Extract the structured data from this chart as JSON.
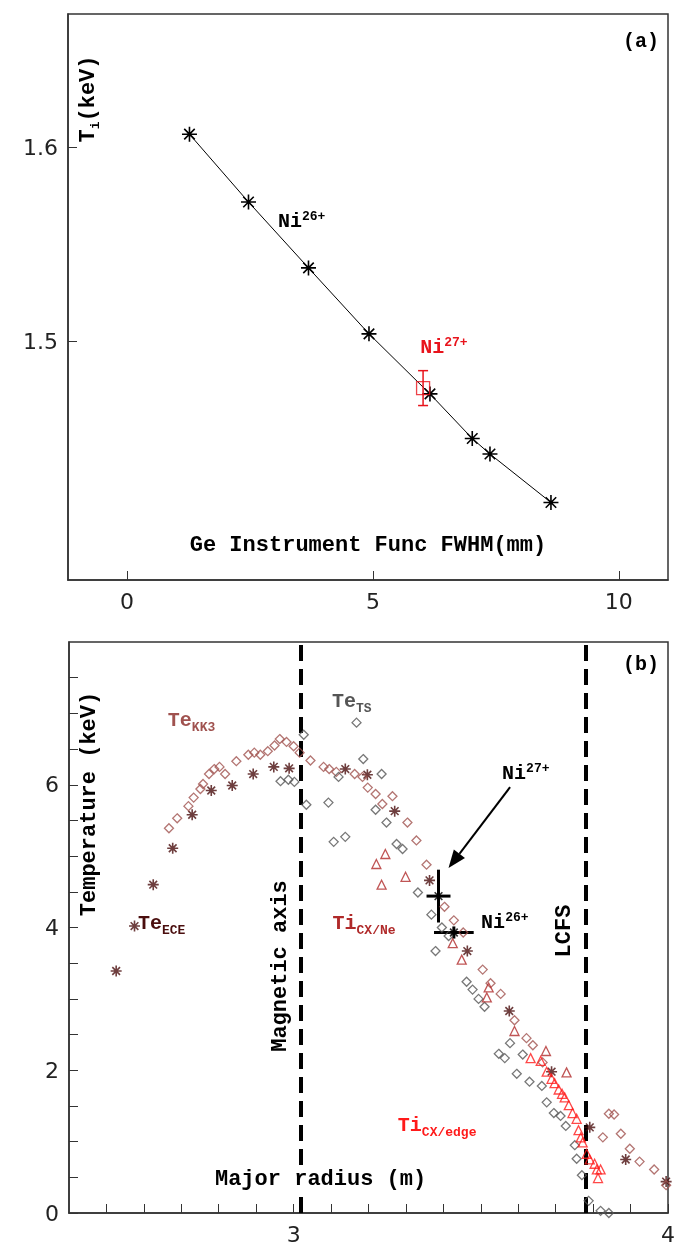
{
  "chart_data": [
    {
      "type": "line",
      "xlabel": "Ge Instrument Func FWHM(mm)",
      "ylabel": "T$_{i}$(keV)",
      "annotations": [
        "(a)"
      ],
      "xlim": [
        -1.2,
        11
      ],
      "ylim": [
        1.377,
        1.669
      ],
      "xticks": [
        0,
        5,
        10
      ],
      "yticks": [
        1.5,
        1.6
      ],
      "grid": false,
      "legend": false,
      "series": [
        {
          "name": "Ni$^{26+}$",
          "color": "#000000",
          "marker": "cross",
          "x": [
            1.27,
            2.47,
            3.69,
            4.92,
            6.16,
            7.02,
            7.38,
            8.62
          ],
          "values": [
            1.607,
            1.572,
            1.538,
            1.504,
            1.473,
            1.45,
            1.442,
            1.417
          ]
        },
        {
          "name": "Ni$^{27+}$",
          "type": "scatter",
          "color": "#e8141c",
          "marker": "square",
          "x": [
            6.02
          ],
          "values": [
            1.476
          ],
          "errors": [
            0.009
          ]
        }
      ]
    },
    {
      "type": "scatter",
      "xlabel": "Major radius (m)",
      "ylabel": "Temperature (keV)",
      "annotations": [
        "(b)"
      ],
      "xlim": [
        2.4,
        4.0
      ],
      "ylim": [
        0,
        8
      ],
      "xticks": [
        {
          "value": 2.5,
          "label": null
        },
        {
          "value": 2.6,
          "label": null
        },
        {
          "value": 2.7,
          "label": null
        },
        {
          "value": 2.8,
          "label": null
        },
        {
          "value": 2.9,
          "label": null
        },
        3,
        {
          "value": 3.1,
          "label": null
        },
        {
          "value": 3.2,
          "label": null
        },
        {
          "value": 3.3,
          "label": null
        },
        {
          "value": 3.4,
          "label": null
        },
        {
          "value": 3.5,
          "label": null
        },
        {
          "value": 3.6,
          "label": null
        },
        {
          "value": 3.7,
          "label": null
        },
        {
          "value": 3.8,
          "label": null
        },
        {
          "value": 3.9,
          "label": null
        },
        4
      ],
      "yticks": [
        0,
        {
          "value": 0.5,
          "label": null
        },
        {
          "value": 1,
          "label": null
        },
        {
          "value": 1.5,
          "label": null
        },
        2,
        {
          "value": 2.5,
          "label": null
        },
        {
          "value": 3,
          "label": null
        },
        {
          "value": 3.5,
          "label": null
        },
        4,
        {
          "value": 4.5,
          "label": null
        },
        {
          "value": 5,
          "label": null
        },
        {
          "value": 5.5,
          "label": null
        },
        6,
        {
          "value": 6.5,
          "label": null
        },
        {
          "value": 7,
          "label": null
        },
        {
          "value": 7.5,
          "label": null
        }
      ],
      "grid": false,
      "legend": false,
      "ref_lines": [
        {
          "axis": "x",
          "value": 3.02,
          "label": "Magnetic axis",
          "color": "#000000",
          "line_style": "dashed"
        },
        {
          "axis": "x",
          "value": 3.777,
          "label": "LCFS",
          "color": "#000000",
          "line_style": "dashed"
        }
      ],
      "series": [
        {
          "name": "Te$_{ECE}$",
          "color": "#4a0e0e",
          "marker": "cross",
          "x": [
            2.526,
            2.575,
            2.625,
            2.677,
            2.729,
            2.78,
            2.836,
            2.892,
            2.947,
            2.988,
            3.138,
            3.197,
            3.27,
            3.363,
            3.464,
            3.576,
            3.689,
            3.791,
            3.887,
            3.995
          ],
          "values": [
            3.39,
            4.02,
            4.6,
            5.11,
            5.58,
            5.92,
            5.99,
            6.15,
            6.25,
            6.23,
            6.22,
            6.14,
            5.63,
            4.66,
            3.67,
            2.83,
            1.98,
            1.2,
            0.75,
            0.44
          ]
        },
        {
          "name": "Te$_{KK3}$",
          "color": "#a0524f",
          "marker": "diamond",
          "x": [
            2.667,
            2.689,
            2.719,
            2.733,
            2.751,
            2.758,
            2.774,
            2.788,
            2.802,
            2.817,
            2.847,
            2.879,
            2.895,
            2.911,
            2.931,
            2.949,
            2.963,
            2.981,
            3.0,
            3.016,
            3.045,
            3.08,
            3.095,
            3.114,
            3.163,
            3.184,
            3.198,
            3.219,
            3.237,
            3.264,
            3.304,
            3.328,
            3.355,
            3.403,
            3.428,
            3.453,
            3.505,
            3.526,
            3.553,
            3.59,
            3.622,
            3.639,
            3.665,
            3.826,
            3.842,
            3.856,
            3.874,
            3.898,
            3.924,
            3.963,
            3.995
          ],
          "values": [
            5.39,
            5.53,
            5.7,
            5.82,
            5.94,
            6.01,
            6.15,
            6.22,
            6.25,
            6.15,
            6.33,
            6.42,
            6.45,
            6.42,
            6.47,
            6.55,
            6.64,
            6.6,
            6.54,
            6.45,
            6.34,
            6.25,
            6.22,
            6.18,
            6.15,
            6.11,
            5.96,
            5.87,
            5.73,
            5.84,
            5.47,
            5.22,
            4.88,
            4.29,
            4.1,
            3.93,
            3.41,
            3.22,
            3.07,
            2.7,
            2.45,
            2.35,
            2.11,
            1.06,
            1.39,
            1.38,
            1.11,
            0.9,
            0.72,
            0.61,
            0.39
          ]
        },
        {
          "name": "Te$_{TS}$",
          "color": "#555555",
          "marker": "diamond",
          "x": [
            2.965,
            2.986,
            3.002,
            3.027,
            3.034,
            3.093,
            3.107,
            3.138,
            3.12,
            3.168,
            3.186,
            3.235,
            3.219,
            3.248,
            3.275,
            3.291,
            3.332,
            3.368,
            3.379,
            3.396,
            3.414,
            3.462,
            3.478,
            3.494,
            3.51,
            3.548,
            3.564,
            3.578,
            3.596,
            3.612,
            3.63,
            3.663,
            3.676,
            3.695,
            3.713,
            3.727,
            3.751,
            3.756,
            3.77,
            3.788,
            3.82,
            3.842
          ],
          "values": [
            6.05,
            6.07,
            6.04,
            6.7,
            5.72,
            5.75,
            5.2,
            5.27,
            6.11,
            6.87,
            6.36,
            6.15,
            5.65,
            5.47,
            5.17,
            5.1,
            4.49,
            4.18,
            3.67,
            4.0,
            3.88,
            3.24,
            3.13,
            3.0,
            2.89,
            2.23,
            2.17,
            2.38,
            1.95,
            2.22,
            1.84,
            1.78,
            1.55,
            1.4,
            1.36,
            1.22,
            0.95,
            0.76,
            0.53,
            0.17,
            0.03,
            0.0
          ]
        },
        {
          "name": "Ti$_{CX/Ne}$",
          "color": "#b02a2a",
          "marker": "triangle",
          "x": [
            3.221,
            3.245,
            3.235,
            3.299,
            3.425,
            3.449,
            3.521,
            3.516,
            3.59,
            3.674,
            3.729
          ],
          "values": [
            4.89,
            5.03,
            4.6,
            4.71,
            3.78,
            3.55,
            3.16,
            3.02,
            2.55,
            2.27,
            1.97
          ]
        },
        {
          "name": "Ti$_{CX/edge}$",
          "color": "#ff1a1a",
          "marker": "triangle",
          "x": [
            3.633,
            3.66,
            3.676,
            3.689,
            3.697,
            3.708,
            3.717,
            3.724,
            3.735,
            3.745,
            3.756,
            3.761,
            3.767,
            3.772,
            3.783,
            3.791,
            3.804,
            3.81,
            3.82,
            3.813
          ],
          "values": [
            2.17,
            2.13,
            1.98,
            1.88,
            1.82,
            1.73,
            1.67,
            1.62,
            1.51,
            1.4,
            1.32,
            1.16,
            1.06,
            0.99,
            0.83,
            0.75,
            0.69,
            0.61,
            0.61,
            0.49
          ]
        },
        {
          "name": "Ni$^{27+}$",
          "color": "#000000",
          "marker": "cross",
          "x": [
            3.387
          ],
          "values": [
            4.44
          ],
          "errors": [
            0.37
          ],
          "xerrors": [
            0.032
          ]
        },
        {
          "name": "Ni$^{26+}$",
          "color": "#000000",
          "marker": "cross",
          "x": [
            3.428
          ],
          "values": [
            3.93
          ],
          "errors": [
            0.085
          ],
          "xerrors": [
            0.053
          ]
        }
      ]
    }
  ]
}
